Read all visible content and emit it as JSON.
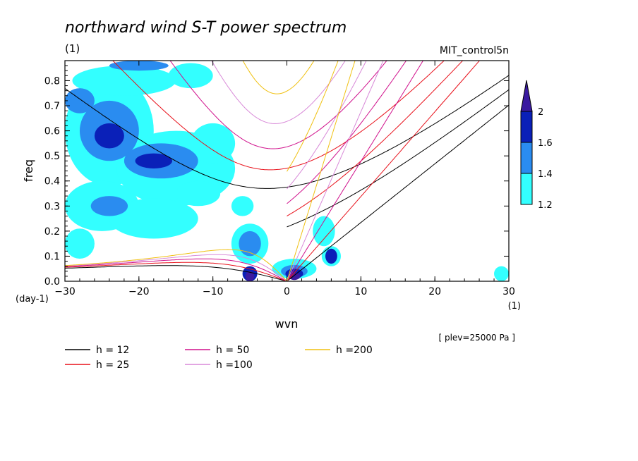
{
  "chart_data": {
    "type": "heatmap",
    "title": "northward wind S-T power spectrum",
    "units_label": "(1)",
    "run_label": "MIT_control5n",
    "xlabel": "wvn",
    "x_units": "(1)",
    "ylabel": "freq",
    "y_units": "(day-1)",
    "xlim": [
      -30,
      30
    ],
    "ylim": [
      0,
      0.88
    ],
    "x_ticks": [
      "-30",
      "-20",
      "-10",
      "0",
      "10",
      "20",
      "30"
    ],
    "y_ticks": [
      "0.0",
      "0.1",
      "0.2",
      "0.3",
      "0.4",
      "0.5",
      "0.6",
      "0.7",
      "0.8"
    ],
    "level_note": "[ plev=25000 Pa ]",
    "colorbar": {
      "levels": [
        "1.2",
        "1.4",
        "1.6",
        "2"
      ],
      "colors": [
        "#33ffff",
        "#2a8cf0",
        "#0a20b8",
        "#3a1aa0"
      ]
    },
    "curves": [
      {
        "name": "h = 12",
        "h": 12,
        "color": "#000000"
      },
      {
        "name": "h = 25",
        "h": 25,
        "color": "#e8101a"
      },
      {
        "name": "h = 50",
        "h": 50,
        "color": "#d0108c"
      },
      {
        "name": "h =100",
        "h": 100,
        "color": "#d889d8"
      },
      {
        "name": "h =200",
        "h": 200,
        "color": "#f0c010"
      }
    ],
    "contour_regions": [
      {
        "level": 1.2,
        "x": -24,
        "y": 0.6,
        "rx": 6,
        "ry": 0.22
      },
      {
        "level": 1.2,
        "x": -15,
        "y": 0.45,
        "rx": 8,
        "ry": 0.15
      },
      {
        "level": 1.2,
        "x": -25,
        "y": 0.3,
        "rx": 5,
        "ry": 0.1
      },
      {
        "level": 1.2,
        "x": -18,
        "y": 0.25,
        "rx": 6,
        "ry": 0.08
      },
      {
        "level": 1.2,
        "x": -22,
        "y": 0.8,
        "rx": 7,
        "ry": 0.06
      },
      {
        "level": 1.2,
        "x": -10,
        "y": 0.55,
        "rx": 3,
        "ry": 0.08
      },
      {
        "level": 1.2,
        "x": -13,
        "y": 0.82,
        "rx": 3,
        "ry": 0.05
      },
      {
        "level": 1.2,
        "x": -5,
        "y": 0.15,
        "rx": 2.5,
        "ry": 0.08
      },
      {
        "level": 1.2,
        "x": -6,
        "y": 0.3,
        "rx": 1.5,
        "ry": 0.04
      },
      {
        "level": 1.2,
        "x": 5,
        "y": 0.2,
        "rx": 1.5,
        "ry": 0.06
      },
      {
        "level": 1.2,
        "x": 1,
        "y": 0.05,
        "rx": 3,
        "ry": 0.04
      },
      {
        "level": 1.2,
        "x": -28,
        "y": 0.15,
        "rx": 2,
        "ry": 0.06
      },
      {
        "level": 1.2,
        "x": -12,
        "y": 0.35,
        "rx": 3,
        "ry": 0.05
      },
      {
        "level": 1.2,
        "x": 29,
        "y": 0.03,
        "rx": 1,
        "ry": 0.03
      },
      {
        "level": 1.2,
        "x": 6,
        "y": 0.1,
        "rx": 1.3,
        "ry": 0.04
      },
      {
        "level": 1.4,
        "x": -24,
        "y": 0.6,
        "rx": 4,
        "ry": 0.12
      },
      {
        "level": 1.4,
        "x": -17,
        "y": 0.48,
        "rx": 5,
        "ry": 0.07
      },
      {
        "level": 1.4,
        "x": -28,
        "y": 0.72,
        "rx": 2,
        "ry": 0.05
      },
      {
        "level": 1.4,
        "x": -5,
        "y": 0.15,
        "rx": 1.5,
        "ry": 0.05
      },
      {
        "level": 1.4,
        "x": 1,
        "y": 0.04,
        "rx": 1.8,
        "ry": 0.025
      },
      {
        "level": 1.4,
        "x": -24,
        "y": 0.3,
        "rx": 2.5,
        "ry": 0.04
      },
      {
        "level": 1.4,
        "x": -20,
        "y": 0.86,
        "rx": 4,
        "ry": 0.02
      },
      {
        "level": 1.6,
        "x": -24,
        "y": 0.58,
        "rx": 2,
        "ry": 0.05
      },
      {
        "level": 1.6,
        "x": -18,
        "y": 0.48,
        "rx": 2.5,
        "ry": 0.03
      },
      {
        "level": 1.6,
        "x": -5,
        "y": 0.03,
        "rx": 1,
        "ry": 0.03
      },
      {
        "level": 1.6,
        "x": 1,
        "y": 0.03,
        "rx": 1.2,
        "ry": 0.02
      },
      {
        "level": 1.6,
        "x": 6,
        "y": 0.1,
        "rx": 0.8,
        "ry": 0.03
      },
      {
        "level": 2,
        "x": -5,
        "y": 0.02,
        "rx": 0.6,
        "ry": 0.02
      },
      {
        "level": 2,
        "x": 1,
        "y": 0.02,
        "rx": 0.8,
        "ry": 0.015
      }
    ]
  }
}
